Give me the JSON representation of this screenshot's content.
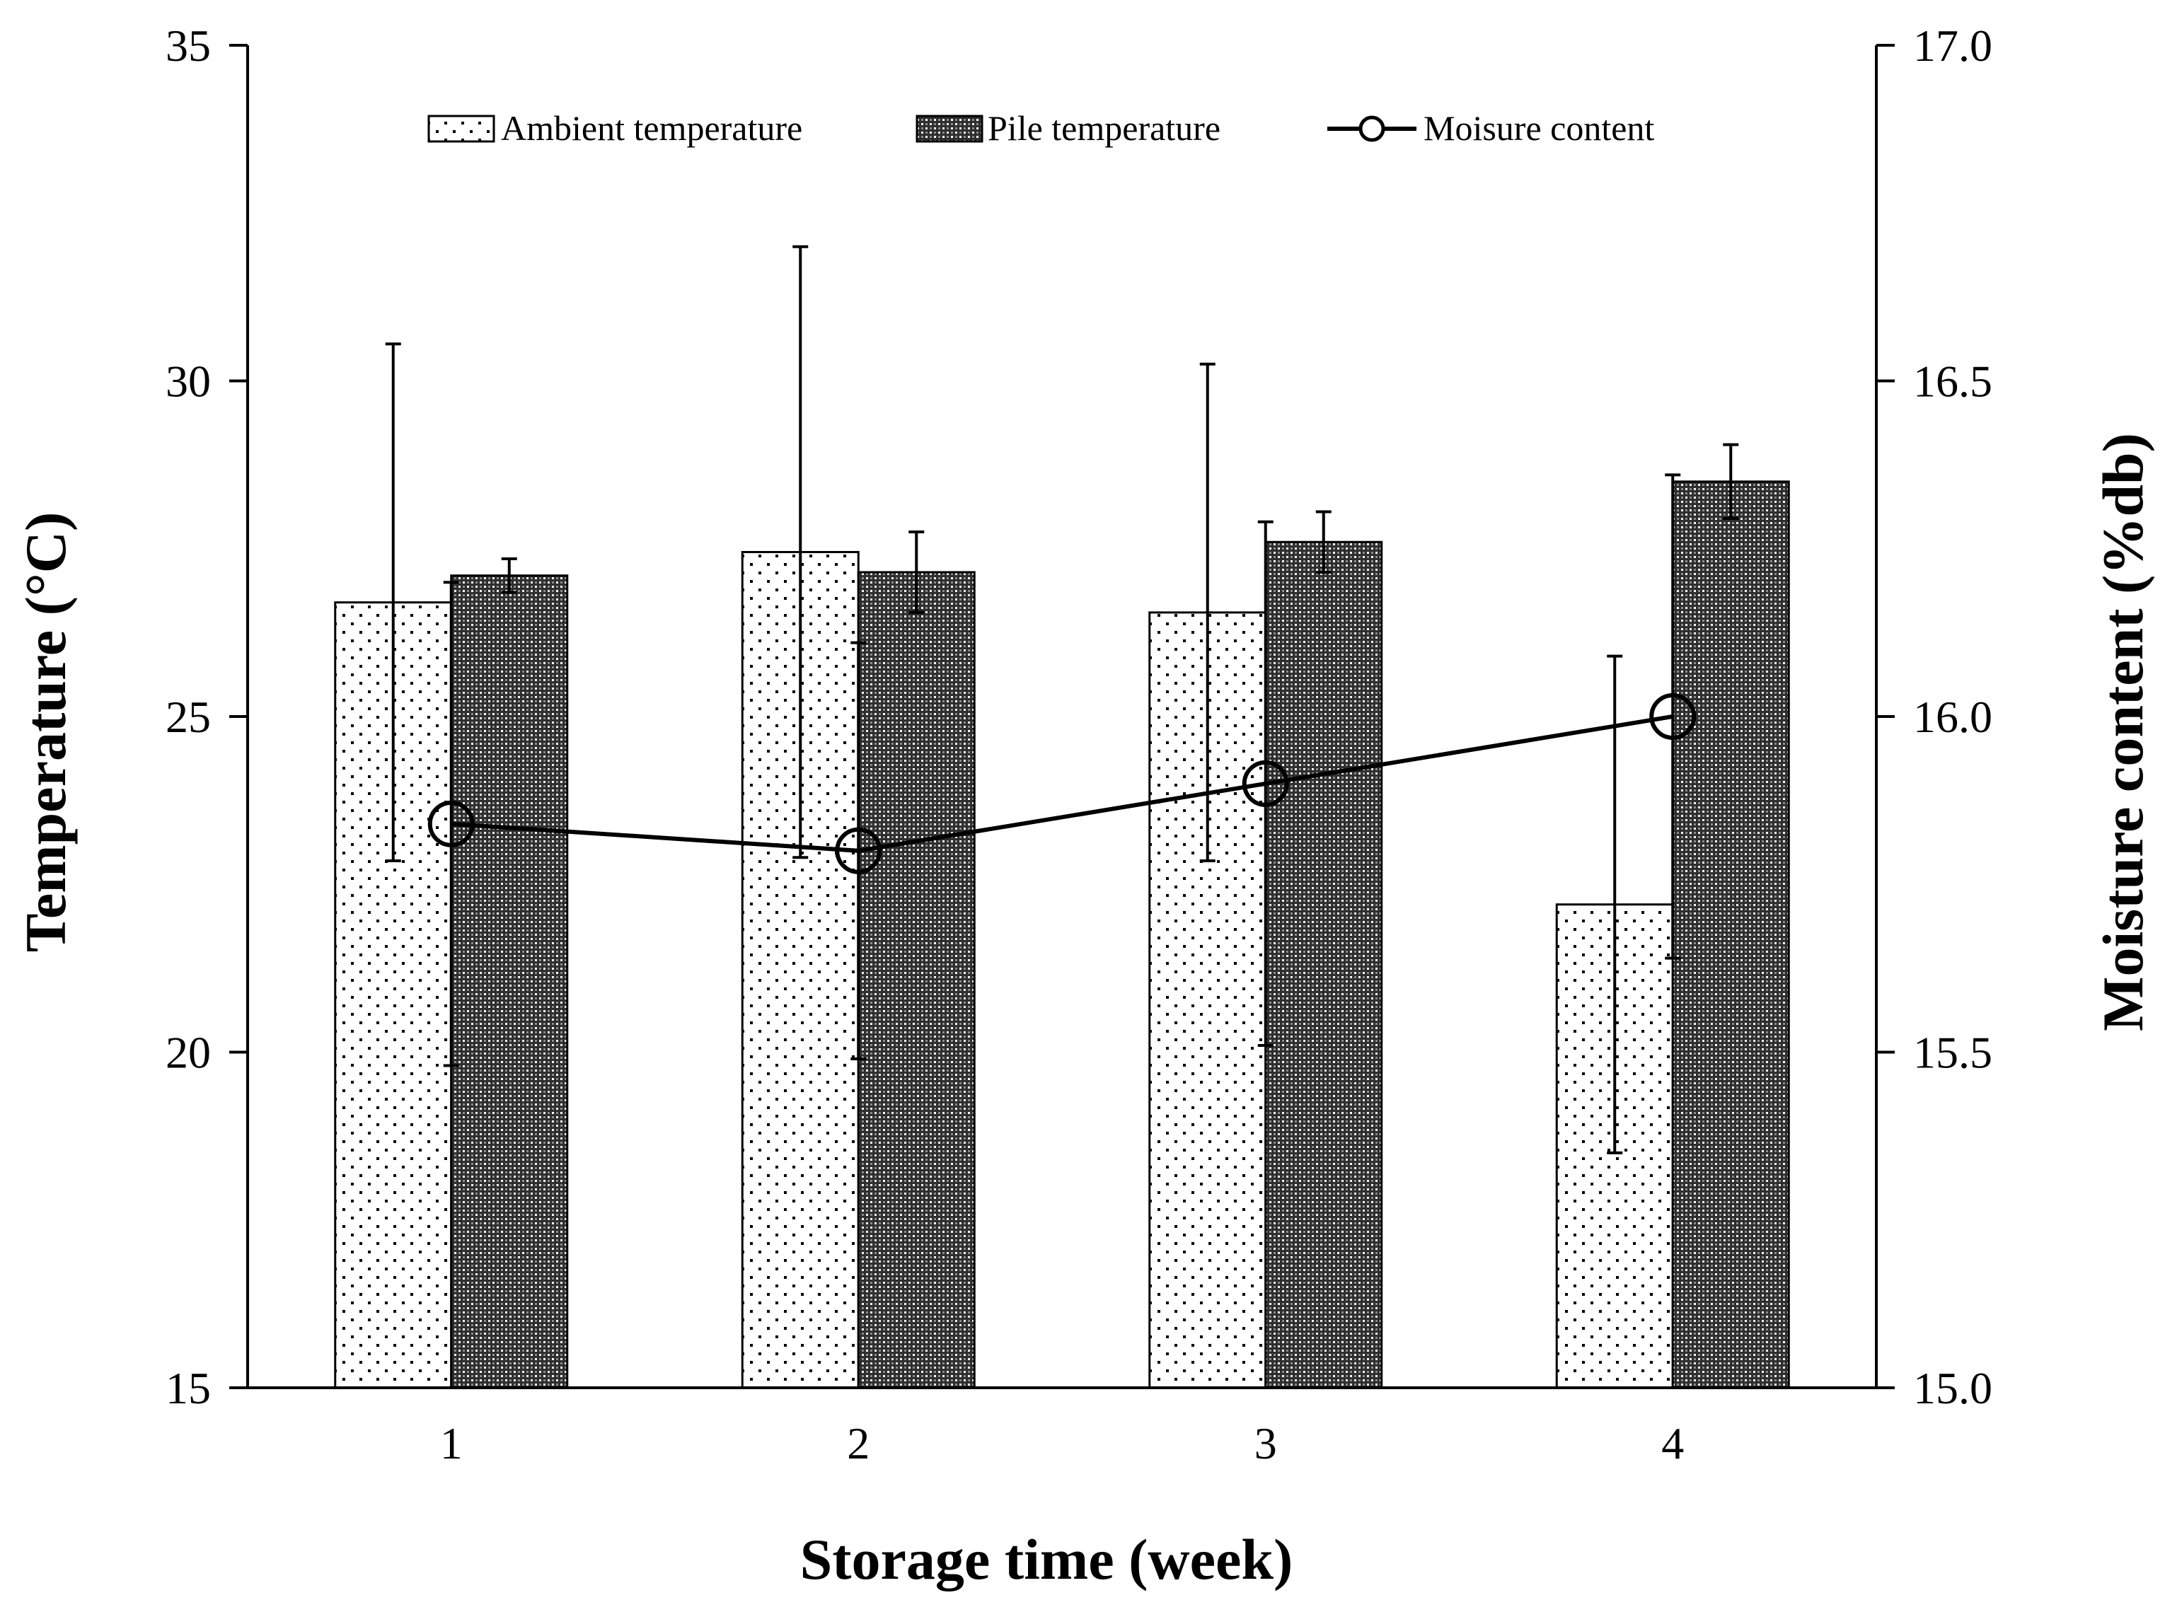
{
  "chart_data": {
    "type": "bar",
    "xlabel": "Storage time (week)",
    "ylabel": "Temperature (°C)",
    "y2label": "Moisture content (%db)",
    "categories": [
      "1",
      "2",
      "3",
      "4"
    ],
    "ylim": [
      15,
      35
    ],
    "yticks": [
      "15",
      "20",
      "25",
      "30",
      "35"
    ],
    "y2lim": [
      15.0,
      17.0
    ],
    "y2ticks": [
      "15.0",
      "15.5",
      "16.0",
      "16.5",
      "17.0"
    ],
    "legend_position": "top",
    "series": [
      {
        "name": "Ambient temperature",
        "kind": "bar",
        "axis": "left",
        "pattern": "sparse-dots",
        "values": [
          26.7,
          27.45,
          26.55,
          22.2
        ],
        "error": [
          3.85,
          4.55,
          3.7,
          3.7
        ]
      },
      {
        "name": "Pile temperature",
        "kind": "bar",
        "axis": "left",
        "pattern": "dense-checker",
        "values": [
          27.1,
          27.15,
          27.6,
          28.5
        ],
        "error": [
          0.25,
          0.6,
          0.45,
          0.55
        ]
      },
      {
        "name": "Moisure content",
        "kind": "line",
        "axis": "right",
        "marker": "open-circle",
        "values": [
          15.84,
          15.8,
          15.9,
          16.0
        ],
        "error": [
          0.36,
          0.31,
          0.39,
          0.36
        ]
      }
    ]
  }
}
